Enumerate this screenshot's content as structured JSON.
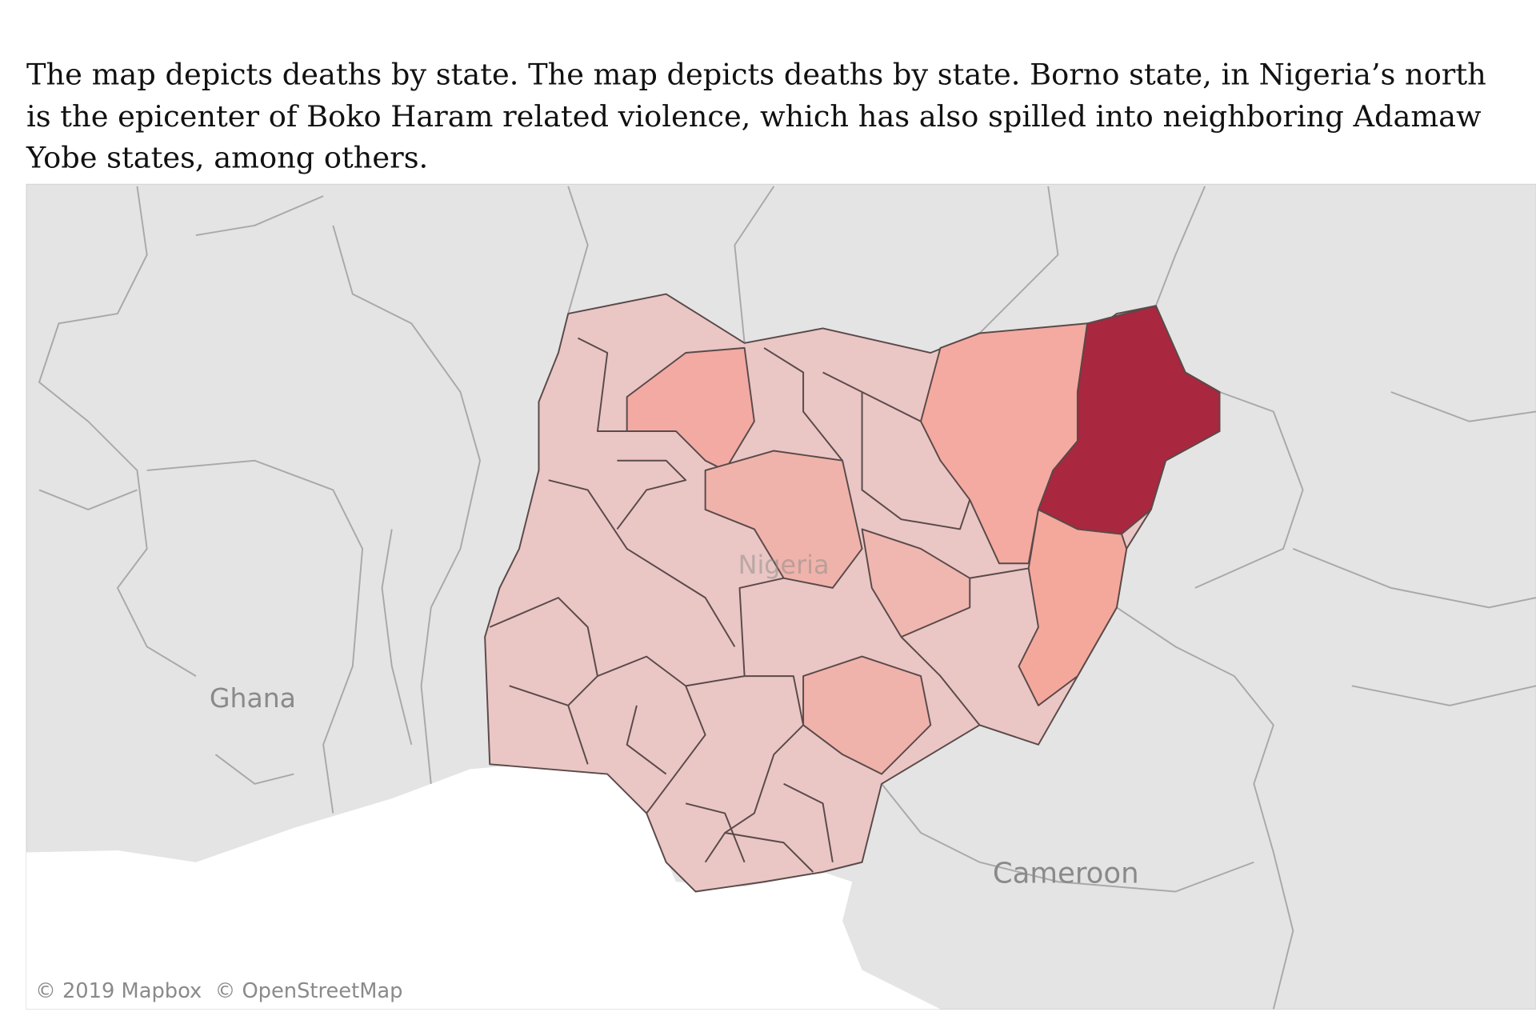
{
  "description": {
    "lines": [
      "The map depicts deaths by state. The map depicts deaths by state. Borno state, in Nigeria’s north",
      "is the epicenter of Boko Haram related violence, which has also spilled into neighboring Adamaw",
      "Yobe states, among others."
    ]
  },
  "map": {
    "labels": [
      "Ghana",
      "Nigeria",
      "Cameroon"
    ],
    "attribution": "© 2019 Mapbox  © OpenStreetMap"
  }
}
